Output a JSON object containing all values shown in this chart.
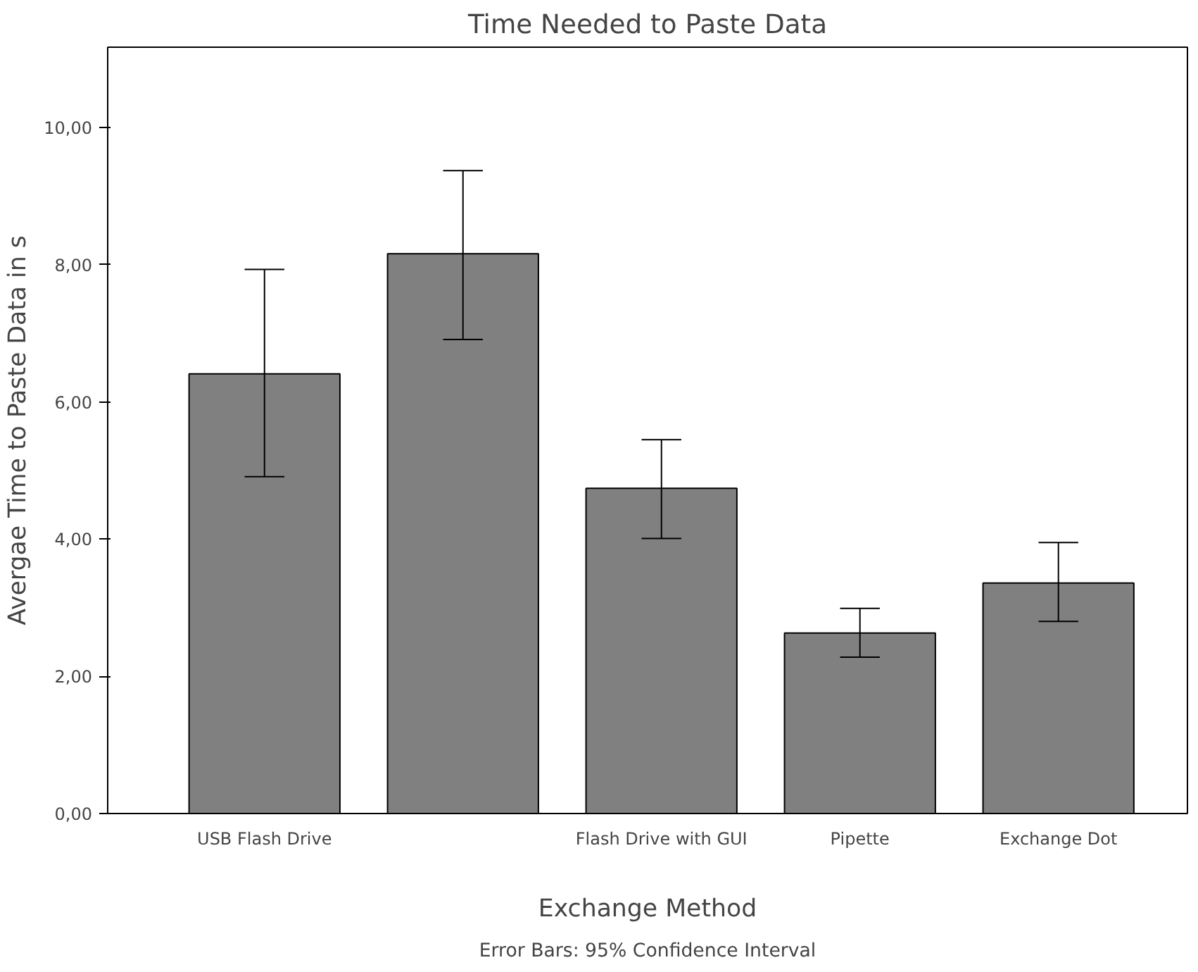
{
  "chart_data": {
    "type": "bar",
    "title": "Time Needed to Paste Data",
    "xlabel": "Exchange Method",
    "ylabel": "Avergae Time to Paste Data in s",
    "categories": [
      "USB Flash Drive",
      null,
      "Flash Drive with GUI",
      "Pipette",
      "Exchange Dot"
    ],
    "values": [
      6.41,
      8.16,
      4.74,
      2.63,
      3.36
    ],
    "errors": [
      [
        4.91,
        7.93
      ],
      [
        6.91,
        9.37
      ],
      [
        4.01,
        5.45
      ],
      [
        2.28,
        2.99
      ],
      [
        2.8,
        3.95
      ]
    ],
    "color": "#808080",
    "ylim": [
      0,
      11.17
    ],
    "yticks": [
      {
        "value": 0,
        "label": "0,00"
      },
      {
        "value": 2,
        "label": "2,00"
      },
      {
        "value": 4,
        "label": "4,00"
      },
      {
        "value": 6,
        "label": "6,00"
      },
      {
        "value": 8,
        "label": "8,00"
      },
      {
        "value": 10,
        "label": "10,00"
      }
    ],
    "grid": false,
    "annotations": [
      "Error Bars: 95% Confidence Interval"
    ]
  }
}
